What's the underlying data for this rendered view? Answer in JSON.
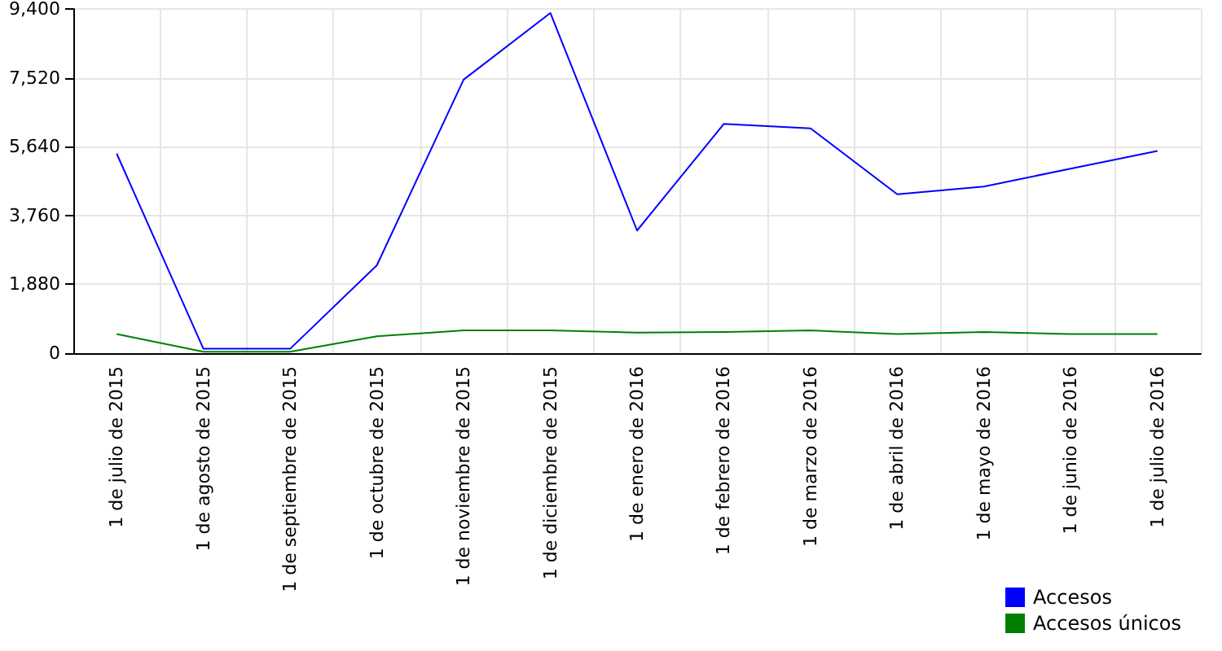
{
  "chart_data": {
    "type": "line",
    "categories": [
      "1 de julio de 2015",
      "1 de agosto de 2015",
      "1 de septiembre de 2015",
      "1 de octubre de 2015",
      "1 de noviembre de 2015",
      "1 de diciembre de 2015",
      "1 de enero de 2016",
      "1 de febrero de 2016",
      "1 de marzo de 2016",
      "1 de abril de 2016",
      "1 de mayo de 2016",
      "1 de junio de 2016",
      "1 de julio de 2016"
    ],
    "series": [
      {
        "name": "Accesos",
        "color": "#0000ff",
        "values": [
          5450,
          120,
          120,
          2400,
          7470,
          9290,
          3350,
          6260,
          6140,
          4340,
          4550,
          5040,
          5520
        ]
      },
      {
        "name": "Accesos únicos",
        "color": "#008000",
        "values": [
          520,
          40,
          40,
          460,
          620,
          620,
          560,
          580,
          620,
          520,
          580,
          520,
          520
        ]
      }
    ],
    "ylim": [
      0,
      9400
    ],
    "yticks": [
      0,
      {
        "value": 1880,
        "label": "1,880"
      },
      {
        "value": 3760,
        "label": "3,760"
      },
      {
        "value": 5640,
        "label": "5,640"
      },
      {
        "value": 7520,
        "label": "7,520"
      },
      {
        "value": 9400,
        "label": "9,400"
      }
    ],
    "grid": true,
    "legend": "bottom right",
    "marker": "none",
    "line_style": "solid"
  }
}
